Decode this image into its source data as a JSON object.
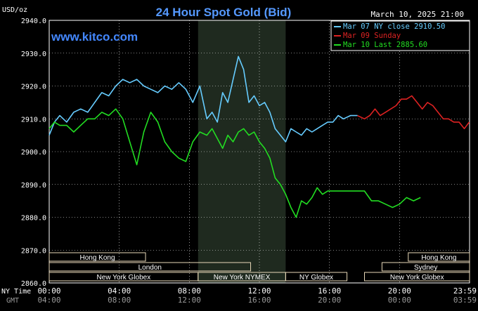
{
  "chart_data": {
    "type": "line",
    "title": "24 Hour Spot Gold (Bid)",
    "ylabel": "USD/oz",
    "watermark": "www.kitco.com",
    "timestamp": "March 10, 2025 21:00",
    "ylim": [
      2860,
      2940
    ],
    "y_ticks": [
      "2940.0",
      "2930.0",
      "2920.0",
      "2910.0",
      "2900.0",
      "2890.0",
      "2880.0",
      "2870.0",
      "2860.0"
    ],
    "x_row_labels": [
      "NY Time",
      "GMT"
    ],
    "x_ticks_ny": [
      "00:00",
      "04:00",
      "08:00",
      "12:00",
      "16:00",
      "20:00",
      "23:59"
    ],
    "x_ticks_gmt": [
      "04:00",
      "08:00",
      "12:00",
      "16:00",
      "20:00",
      "00:00",
      "03:59"
    ],
    "x_tick_hours": [
      0,
      4,
      8,
      12,
      16,
      20,
      23.983
    ],
    "highlight_hours": [
      8.5,
      13.5
    ],
    "grid": true,
    "legend_position": "top-right",
    "colors": {
      "background": "#000000",
      "plot": "#000000",
      "highlight": "#1f2a1f",
      "grid": "#ffffff",
      "title": "#5599ff",
      "watermark": "#4488ff",
      "text": "#ffffff",
      "session_fill": "#e8d8b8",
      "session_text": "#000000"
    },
    "legend": [
      {
        "label": "Mar 07 NY close 2910.50",
        "color": "#66ccff"
      },
      {
        "label": "Mar 09 Sunday",
        "color": "#dd2222"
      },
      {
        "label": "Mar 10 Last 2885.60",
        "color": "#22dd22"
      }
    ],
    "sessions": [
      {
        "label": "Hong Kong",
        "row": 1,
        "start": 0,
        "end": 5.5
      },
      {
        "label": "London",
        "row": 2,
        "start": 0,
        "end": 11.5
      },
      {
        "label": "New York Globex",
        "row": 3,
        "start": 0,
        "end": 8.5
      },
      {
        "label": "New York NYMEX",
        "row": 3,
        "start": 8.5,
        "end": 13.5
      },
      {
        "label": "NY Globex",
        "row": 3,
        "start": 13.5,
        "end": 17.0
      },
      {
        "label": "Hong Kong",
        "row": 1,
        "start": 20.5,
        "end": 24
      },
      {
        "label": "Sydney",
        "row": 2,
        "start": 19.0,
        "end": 24
      },
      {
        "label": "New York Globex",
        "row": 3,
        "start": 18.0,
        "end": 24
      }
    ],
    "series": [
      {
        "name": "Mar 07 NY close 2910.50",
        "color": "#66ccff",
        "x": [
          0,
          0.3,
          0.6,
          1.0,
          1.4,
          1.8,
          2.2,
          2.6,
          3.0,
          3.4,
          3.8,
          4.2,
          4.6,
          5.0,
          5.4,
          5.8,
          6.2,
          6.6,
          7.0,
          7.4,
          7.8,
          8.2,
          8.6,
          9.0,
          9.3,
          9.6,
          9.9,
          10.2,
          10.5,
          10.8,
          11.1,
          11.4,
          11.7,
          12.0,
          12.3,
          12.6,
          12.9,
          13.2,
          13.5,
          13.8,
          14.1,
          14.4,
          14.7,
          15.0,
          15.3,
          15.6,
          15.9,
          16.2,
          16.5,
          16.8,
          17.2,
          17.6
        ],
        "y": [
          2905,
          2909,
          2911,
          2909,
          2912,
          2913,
          2912,
          2915,
          2918,
          2917,
          2920,
          2922,
          2921,
          2922,
          2920,
          2919,
          2918,
          2920,
          2919,
          2921,
          2919,
          2915,
          2920,
          2910,
          2912,
          2909,
          2918,
          2915,
          2922,
          2929,
          2925,
          2915,
          2917,
          2914,
          2915,
          2912,
          2907,
          2905,
          2903,
          2907,
          2906,
          2905,
          2907,
          2906,
          2907,
          2908,
          2909,
          2909,
          2911,
          2910,
          2911,
          2911
        ]
      },
      {
        "name": "Mar 09 Sunday",
        "color": "#dd2222",
        "x": [
          17.6,
          18.0,
          18.3,
          18.6,
          18.9,
          19.2,
          19.5,
          19.8,
          20.1,
          20.4,
          20.7,
          21.0,
          21.3,
          21.6,
          21.9,
          22.2,
          22.5,
          22.8,
          23.1,
          23.4,
          23.7,
          23.983
        ],
        "y": [
          2911,
          2910,
          2911,
          2913,
          2911,
          2912,
          2913,
          2914,
          2916,
          2916,
          2917,
          2915,
          2913,
          2915,
          2914,
          2912,
          2910,
          2910,
          2909,
          2909,
          2907,
          2909
        ]
      },
      {
        "name": "Mar 10 Last 2885.60",
        "color": "#22dd22",
        "x": [
          0,
          0.3,
          0.6,
          1.0,
          1.4,
          1.8,
          2.2,
          2.6,
          3.0,
          3.4,
          3.8,
          4.2,
          4.6,
          5.0,
          5.4,
          5.8,
          6.2,
          6.6,
          7.0,
          7.4,
          7.8,
          8.2,
          8.6,
          9.0,
          9.3,
          9.6,
          9.9,
          10.2,
          10.5,
          10.8,
          11.1,
          11.4,
          11.7,
          12.0,
          12.3,
          12.6,
          12.9,
          13.2,
          13.5,
          13.8,
          14.1,
          14.4,
          14.7,
          15.0,
          15.3,
          15.6,
          15.9,
          16.2,
          16.5,
          16.8,
          17.2,
          17.6,
          18.0,
          18.4,
          18.8,
          19.2,
          19.6,
          20.0,
          20.4,
          20.8,
          21.2
        ],
        "y": [
          2907,
          2909,
          2908,
          2908,
          2906,
          2908,
          2910,
          2910,
          2912,
          2911,
          2913,
          2910,
          2903,
          2896,
          2906,
          2912,
          2909,
          2903,
          2900,
          2898,
          2897,
          2903,
          2906,
          2905,
          2907,
          2904,
          2901,
          2905,
          2903,
          2906,
          2907,
          2905,
          2906,
          2903,
          2901,
          2898,
          2892,
          2890,
          2887,
          2883,
          2880,
          2885,
          2884,
          2886,
          2889,
          2887,
          2888,
          2888,
          2888,
          2888,
          2888,
          2888,
          2888,
          2885,
          2885,
          2884,
          2883,
          2884,
          2886,
          2885,
          2886
        ]
      }
    ]
  }
}
